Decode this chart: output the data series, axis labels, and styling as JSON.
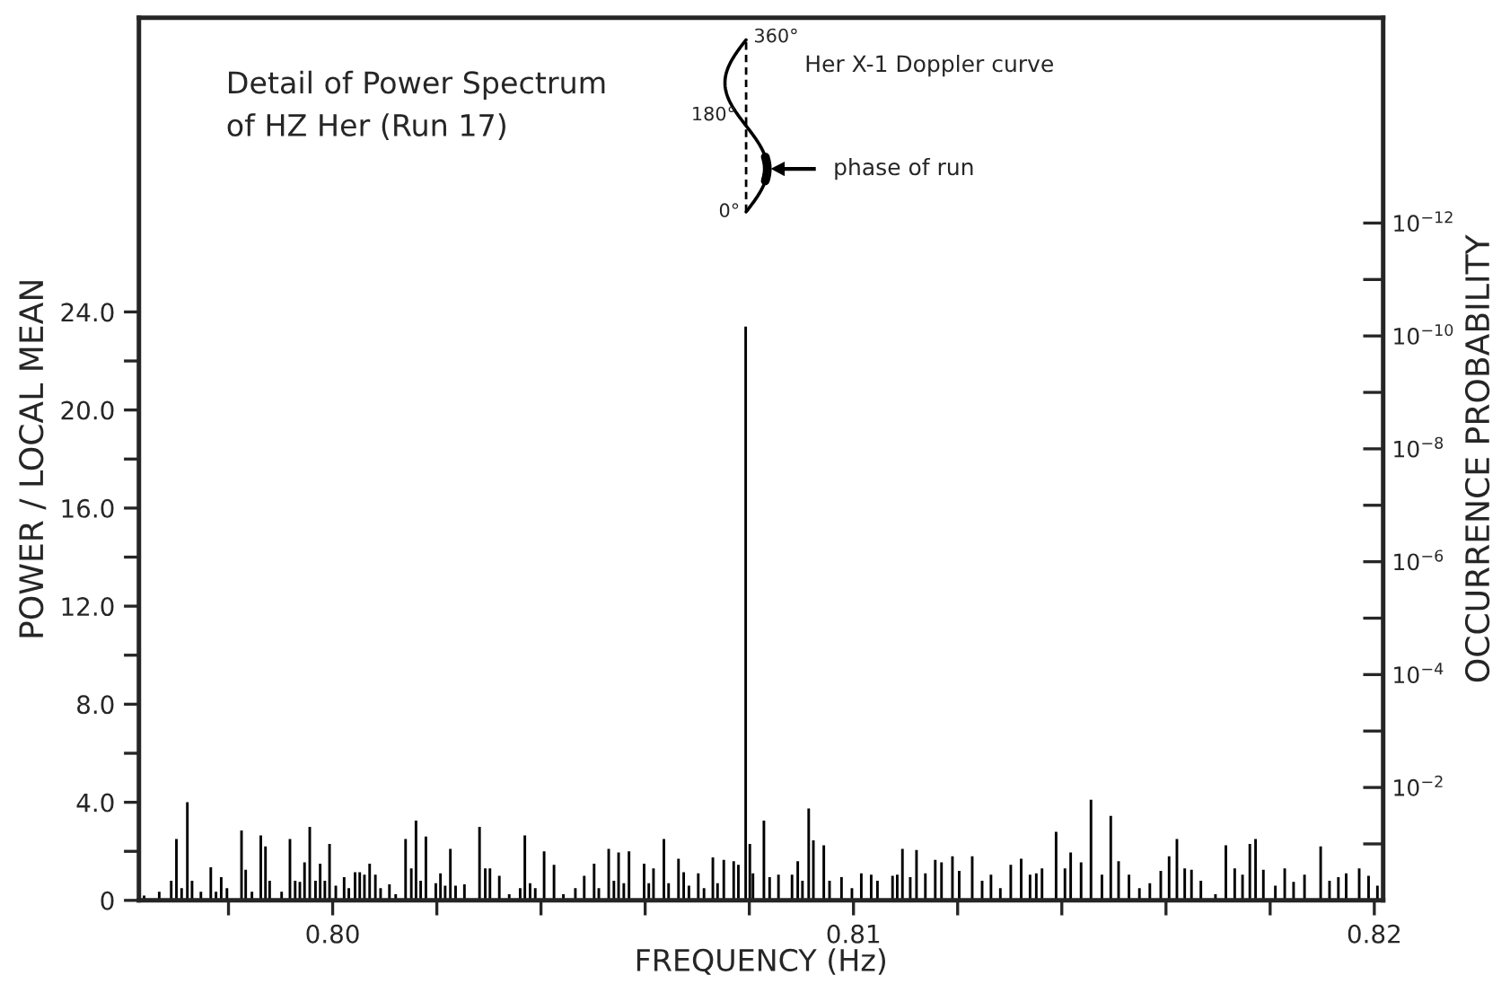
{
  "chart_data": {
    "type": "bar",
    "title": "Detail of Power Spectrum\nof HZ Her (Run 17)",
    "xlabel": "FREQUENCY (Hz)",
    "ylabel": "POWER / LOCAL MEAN",
    "y2label": "OCCURRENCE PROBABILITY",
    "annotations": [
      "Her X-1 Doppler curve",
      "phase of run",
      "360°",
      "180°",
      "0°"
    ],
    "x": [
      0.79638,
      0.79667,
      0.7969,
      0.797,
      0.7971,
      0.79721,
      0.7973,
      0.79747,
      0.79766,
      0.79776,
      0.79786,
      0.79797,
      0.79825,
      0.79833,
      0.79845,
      0.79862,
      0.79871,
      0.79879,
      0.79902,
      0.79918,
      0.79928,
      0.79937,
      0.79946,
      0.79956,
      0.79967,
      0.79976,
      0.79985,
      0.79994,
      0.80006,
      0.80022,
      0.80031,
      0.80043,
      0.80052,
      0.80061,
      0.80071,
      0.80082,
      0.80092,
      0.80109,
      0.80121,
      0.8014,
      0.80151,
      0.8016,
      0.80169,
      0.80179,
      0.80198,
      0.80207,
      0.80216,
      0.80226,
      0.80236,
      0.80253,
      0.80282,
      0.80293,
      0.80302,
      0.8032,
      0.80339,
      0.8036,
      0.80369,
      0.80379,
      0.80389,
      0.80406,
      0.80425,
      0.80443,
      0.80466,
      0.80483,
      0.80502,
      0.80511,
      0.8053,
      0.8054,
      0.80549,
      0.80559,
      0.80569,
      0.80598,
      0.80607,
      0.80616,
      0.80636,
      0.80645,
      0.80664,
      0.80674,
      0.80684,
      0.80702,
      0.80713,
      0.8073,
      0.80739,
      0.80751,
      0.8077,
      0.80779,
      0.80793,
      0.80801,
      0.80807,
      0.80828,
      0.80839,
      0.80856,
      0.80882,
      0.80893,
      0.80902,
      0.80914,
      0.80923,
      0.80943,
      0.80954,
      0.80977,
      0.80997,
      0.81015,
      0.81034,
      0.81046,
      0.81075,
      0.81084,
      0.81094,
      0.81109,
      0.81121,
      0.81138,
      0.81157,
      0.81169,
      0.8119,
      0.81203,
      0.81228,
      0.81247,
      0.81264,
      0.81282,
      0.81302,
      0.81322,
      0.81339,
      0.81351,
      0.81362,
      0.81389,
      0.81406,
      0.81417,
      0.81437,
      0.81456,
      0.81477,
      0.81494,
      0.81509,
      0.81529,
      0.81549,
      0.81569,
      0.8159,
      0.81606,
      0.81621,
      0.81636,
      0.81649,
      0.81667,
      0.81695,
      0.81715,
      0.81732,
      0.81747,
      0.81761,
      0.81772,
      0.81787,
      0.8181,
      0.81828,
      0.81845,
      0.81866,
      0.81897,
      0.81914,
      0.81931,
      0.81946,
      0.81971,
      0.81989,
      0.82006
    ],
    "series": [
      {
        "color": "#000000",
        "values": [
          0.2,
          0.35,
          0.8,
          2.5,
          0.5,
          4.0,
          0.8,
          0.35,
          1.35,
          0.35,
          0.95,
          0.5,
          2.85,
          1.25,
          0.35,
          2.65,
          2.2,
          0.8,
          0.35,
          2.5,
          0.8,
          0.75,
          1.55,
          3.0,
          0.8,
          1.5,
          0.8,
          2.3,
          0.6,
          0.95,
          0.5,
          1.15,
          1.15,
          1.05,
          1.5,
          1.05,
          0.5,
          0.65,
          0.25,
          2.5,
          1.3,
          3.25,
          0.8,
          2.6,
          0.7,
          1.1,
          0.6,
          2.1,
          0.6,
          0.65,
          3.0,
          1.3,
          1.3,
          1.0,
          0.25,
          0.5,
          2.65,
          0.7,
          0.5,
          2.0,
          1.45,
          0.25,
          0.5,
          1.0,
          1.5,
          0.5,
          2.1,
          0.8,
          1.95,
          0.7,
          2.0,
          1.5,
          0.7,
          1.3,
          2.5,
          0.7,
          1.7,
          1.15,
          0.6,
          1.1,
          0.5,
          1.75,
          0.7,
          1.65,
          1.6,
          1.45,
          23.4,
          2.3,
          1.1,
          3.25,
          0.95,
          1.05,
          1.05,
          1.6,
          0.8,
          3.75,
          2.45,
          2.25,
          0.8,
          0.95,
          0.5,
          1.1,
          1.05,
          0.8,
          1.0,
          1.05,
          2.1,
          0.95,
          2.05,
          1.1,
          1.65,
          1.55,
          1.8,
          1.2,
          1.8,
          0.8,
          1.05,
          0.5,
          1.45,
          1.7,
          1.05,
          1.1,
          1.3,
          2.8,
          1.3,
          1.95,
          1.55,
          4.1,
          1.05,
          3.45,
          1.6,
          1.05,
          0.5,
          0.7,
          1.2,
          1.8,
          2.5,
          1.3,
          1.25,
          0.8,
          0.25,
          2.25,
          1.3,
          1.05,
          2.3,
          2.5,
          1.25,
          0.6,
          1.3,
          0.75,
          1.05,
          2.2,
          0.8,
          0.95,
          1.1,
          1.3,
          1.0,
          0.6
        ]
      }
    ],
    "xlim": [
      0.79628,
      0.82017
    ],
    "xticks": [
      {
        "value": 0.798,
        "label": null
      },
      {
        "value": 0.8,
        "label": "0.80"
      },
      {
        "value": 0.802,
        "label": null
      },
      {
        "value": 0.804,
        "label": null
      },
      {
        "value": 0.806,
        "label": null
      },
      {
        "value": 0.808,
        "label": null
      },
      {
        "value": 0.81,
        "label": "0.81"
      },
      {
        "value": 0.812,
        "label": null
      },
      {
        "value": 0.814,
        "label": null
      },
      {
        "value": 0.816,
        "label": null
      },
      {
        "value": 0.818,
        "label": null
      },
      {
        "value": 0.82,
        "label": "0.82"
      }
    ],
    "ylim": [
      0,
      36
    ],
    "yticks": [
      0,
      {
        "value": 2,
        "label": null
      },
      {
        "value": 4,
        "label": "4.0"
      },
      {
        "value": 6,
        "label": null
      },
      {
        "value": 8,
        "label": "8.0"
      },
      {
        "value": 10,
        "label": null
      },
      {
        "value": 12,
        "label": "12.0"
      },
      {
        "value": 14,
        "label": null
      },
      {
        "value": 16,
        "label": "16.0"
      },
      {
        "value": 18,
        "label": null
      },
      {
        "value": 20,
        "label": "20.0"
      },
      {
        "value": 22,
        "label": null
      },
      {
        "value": 24,
        "label": "24.0"
      }
    ],
    "y2lim": [
      1,
      2.3e-16
    ],
    "y2ticks": [
      {
        "value": 0.1,
        "label": null
      },
      {
        "value": 0.01,
        "label": "10$^{−2}$"
      },
      {
        "value": 0.001,
        "label": null
      },
      {
        "value": 0.0001,
        "label": "10$^{−4}$"
      },
      {
        "value": 1e-05,
        "label": null
      },
      {
        "value": 1e-06,
        "label": "10$^{−6}$"
      },
      {
        "value": 1e-07,
        "label": null
      },
      {
        "value": 1e-08,
        "label": "10$^{−8}$"
      },
      {
        "value": 1e-09,
        "label": null
      },
      {
        "value": 1e-10,
        "label": "10$^{−10}$"
      },
      {
        "value": 1e-11,
        "label": null
      },
      {
        "value": 1e-12,
        "label": "10$^{−12}$"
      }
    ],
    "log": "y2",
    "grid": false,
    "legend": false
  }
}
